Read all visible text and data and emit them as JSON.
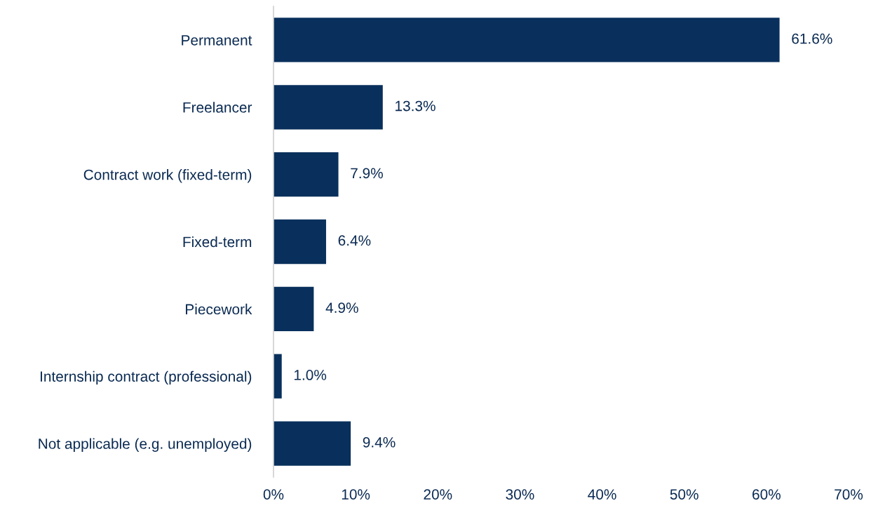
{
  "chart_data": {
    "type": "bar",
    "orientation": "horizontal",
    "categories": [
      "Permanent",
      "Freelancer",
      "Contract work (fixed-term)",
      "Fixed-term",
      "Piecework",
      "Internship contract (professional)",
      "Not applicable (e.g. unemployed)"
    ],
    "values": [
      61.6,
      13.3,
      7.9,
      6.4,
      4.9,
      1.0,
      9.4
    ],
    "value_labels": [
      "61.6%",
      "13.3%",
      "7.9%",
      "6.4%",
      "4.9%",
      "1.0%",
      "9.4%"
    ],
    "color": "#09305c",
    "xlim": [
      0,
      70
    ],
    "xticks": [
      {
        "value": 0,
        "label": "0%"
      },
      {
        "value": 10,
        "label": "10%"
      },
      {
        "value": 20,
        "label": "20%"
      },
      {
        "value": 30,
        "label": "30%"
      },
      {
        "value": 40,
        "label": "40%"
      },
      {
        "value": 50,
        "label": "50%"
      },
      {
        "value": 60,
        "label": "60%"
      },
      {
        "value": 70,
        "label": "70%"
      }
    ],
    "grid": false,
    "legend": false
  }
}
